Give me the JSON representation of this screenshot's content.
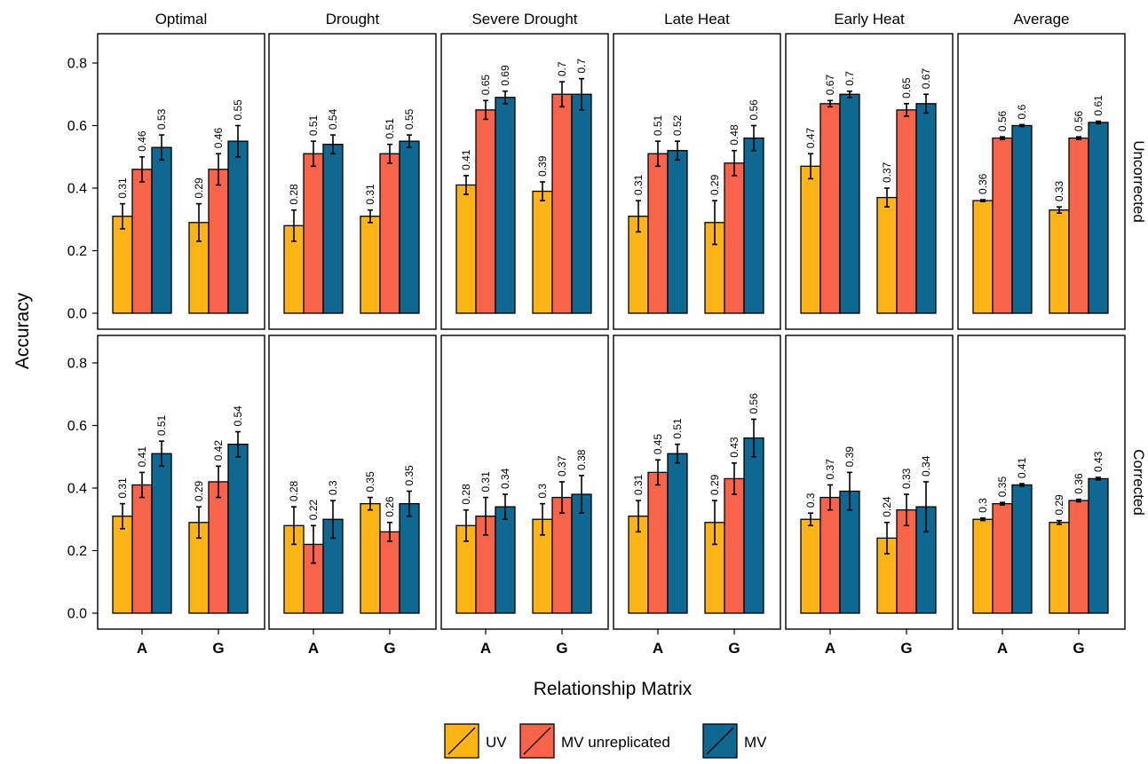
{
  "chart_data": {
    "type": "bar",
    "layout": "faceted grid (rows x columns)",
    "ylabel": "Accuracy",
    "xlabel": "Relationship Matrix",
    "categories": [
      "A",
      "G"
    ],
    "ylim": [
      0,
      0.9
    ],
    "yticks": [
      0.0,
      0.2,
      0.4,
      0.6,
      0.8
    ],
    "ytick_labels": [
      "0.0",
      "0.2",
      "0.4",
      "0.6",
      "0.8"
    ],
    "grid": false,
    "legend_position": "bottom",
    "series": [
      {
        "name": "UV",
        "color": "#FDB515"
      },
      {
        "name": "MV unreplicated",
        "color": "#F8644A"
      },
      {
        "name": "MV",
        "color": "#0E6891"
      }
    ],
    "columns": [
      "Optimal",
      "Drought",
      "Severe Drought",
      "Late Heat",
      "Early Heat",
      "Average"
    ],
    "rows": [
      "Uncorrected",
      "Corrected"
    ],
    "panels": [
      {
        "row": "Uncorrected",
        "column": "Optimal",
        "values": {
          "A": [
            0.31,
            0.46,
            0.53
          ],
          "G": [
            0.29,
            0.46,
            0.55
          ]
        },
        "labels": {
          "A": [
            "0.31",
            "0.46",
            "0.53"
          ],
          "G": [
            "0.29",
            "0.46",
            "0.55"
          ]
        },
        "errors": {
          "A": [
            0.04,
            0.04,
            0.04
          ],
          "G": [
            0.06,
            0.05,
            0.05
          ]
        }
      },
      {
        "row": "Uncorrected",
        "column": "Drought",
        "values": {
          "A": [
            0.28,
            0.51,
            0.54
          ],
          "G": [
            0.31,
            0.51,
            0.55
          ]
        },
        "labels": {
          "A": [
            "0.28",
            "0.51",
            "0.54"
          ],
          "G": [
            "0.31",
            "0.51",
            "0.55"
          ]
        },
        "errors": {
          "A": [
            0.05,
            0.04,
            0.03
          ],
          "G": [
            0.02,
            0.03,
            0.02
          ]
        }
      },
      {
        "row": "Uncorrected",
        "column": "Severe Drought",
        "values": {
          "A": [
            0.41,
            0.65,
            0.69
          ],
          "G": [
            0.39,
            0.7,
            0.7
          ]
        },
        "labels": {
          "A": [
            "0.41",
            "0.65",
            "0.69"
          ],
          "G": [
            "0.39",
            "0.7",
            "0.7"
          ]
        },
        "errors": {
          "A": [
            0.03,
            0.03,
            0.02
          ],
          "G": [
            0.03,
            0.04,
            0.05
          ]
        }
      },
      {
        "row": "Uncorrected",
        "column": "Late Heat",
        "values": {
          "A": [
            0.31,
            0.51,
            0.52
          ],
          "G": [
            0.29,
            0.48,
            0.56
          ]
        },
        "labels": {
          "A": [
            "0.31",
            "0.51",
            "0.52"
          ],
          "G": [
            "0.29",
            "0.48",
            "0.56"
          ]
        },
        "errors": {
          "A": [
            0.05,
            0.04,
            0.03
          ],
          "G": [
            0.07,
            0.04,
            0.04
          ]
        }
      },
      {
        "row": "Uncorrected",
        "column": "Early Heat",
        "values": {
          "A": [
            0.47,
            0.67,
            0.7
          ],
          "G": [
            0.37,
            0.65,
            0.67
          ]
        },
        "labels": {
          "A": [
            "0.47",
            "0.67",
            "0.7"
          ],
          "G": [
            "0.37",
            "0.65",
            "0.67"
          ]
        },
        "errors": {
          "A": [
            0.04,
            0.01,
            0.01
          ],
          "G": [
            0.03,
            0.02,
            0.03
          ]
        }
      },
      {
        "row": "Uncorrected",
        "column": "Average",
        "values": {
          "A": [
            0.36,
            0.56,
            0.6
          ],
          "G": [
            0.33,
            0.56,
            0.61
          ]
        },
        "labels": {
          "A": [
            "0.36",
            "0.56",
            "0.6"
          ],
          "G": [
            "0.33",
            "0.56",
            "0.61"
          ]
        },
        "errors": {
          "A": [
            0.003,
            0.004,
            0.003
          ],
          "G": [
            0.01,
            0.004,
            0.004
          ]
        }
      },
      {
        "row": "Corrected",
        "column": "Optimal",
        "values": {
          "A": [
            0.31,
            0.41,
            0.51
          ],
          "G": [
            0.29,
            0.42,
            0.54
          ]
        },
        "labels": {
          "A": [
            "0.31",
            "0.41",
            "0.51"
          ],
          "G": [
            "0.29",
            "0.42",
            "0.54"
          ]
        },
        "errors": {
          "A": [
            0.04,
            0.04,
            0.04
          ],
          "G": [
            0.05,
            0.05,
            0.04
          ]
        }
      },
      {
        "row": "Corrected",
        "column": "Drought",
        "values": {
          "A": [
            0.28,
            0.22,
            0.3
          ],
          "G": [
            0.35,
            0.26,
            0.35
          ]
        },
        "labels": {
          "A": [
            "0.28",
            "0.22",
            "0.3"
          ],
          "G": [
            "0.35",
            "0.26",
            "0.35"
          ]
        },
        "errors": {
          "A": [
            0.06,
            0.06,
            0.06
          ],
          "G": [
            0.02,
            0.03,
            0.04
          ]
        }
      },
      {
        "row": "Corrected",
        "column": "Severe Drought",
        "values": {
          "A": [
            0.28,
            0.31,
            0.34
          ],
          "G": [
            0.3,
            0.37,
            0.38
          ]
        },
        "labels": {
          "A": [
            "0.28",
            "0.31",
            "0.34"
          ],
          "G": [
            "0.3",
            "0.37",
            "0.38"
          ]
        },
        "errors": {
          "A": [
            0.05,
            0.06,
            0.04
          ],
          "G": [
            0.05,
            0.05,
            0.06
          ]
        }
      },
      {
        "row": "Corrected",
        "column": "Late Heat",
        "values": {
          "A": [
            0.31,
            0.45,
            0.51
          ],
          "G": [
            0.29,
            0.43,
            0.56
          ]
        },
        "labels": {
          "A": [
            "0.31",
            "0.45",
            "0.51"
          ],
          "G": [
            "0.29",
            "0.43",
            "0.56"
          ]
        },
        "errors": {
          "A": [
            0.05,
            0.04,
            0.03
          ],
          "G": [
            0.07,
            0.05,
            0.06
          ]
        }
      },
      {
        "row": "Corrected",
        "column": "Early Heat",
        "values": {
          "A": [
            0.3,
            0.37,
            0.39
          ],
          "G": [
            0.24,
            0.33,
            0.34
          ]
        },
        "labels": {
          "A": [
            "0.3",
            "0.37",
            "0.39"
          ],
          "G": [
            "0.24",
            "0.33",
            "0.34"
          ]
        },
        "errors": {
          "A": [
            0.02,
            0.04,
            0.06
          ],
          "G": [
            0.05,
            0.05,
            0.08
          ]
        }
      },
      {
        "row": "Corrected",
        "column": "Average",
        "values": {
          "A": [
            0.3,
            0.35,
            0.41
          ],
          "G": [
            0.29,
            0.36,
            0.43
          ]
        },
        "labels": {
          "A": [
            "0.3",
            "0.35",
            "0.41"
          ],
          "G": [
            "0.29",
            "0.36",
            "0.43"
          ]
        },
        "errors": {
          "A": [
            0.004,
            0.004,
            0.004
          ],
          "G": [
            0.006,
            0.004,
            0.004
          ]
        }
      }
    ]
  }
}
